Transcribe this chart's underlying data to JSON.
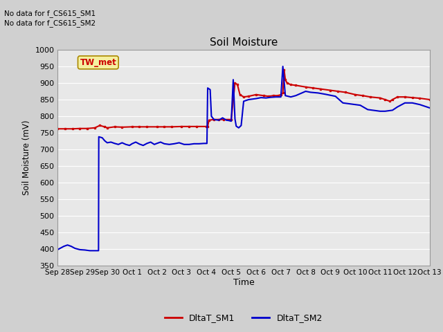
{
  "title": "Soil Moisture",
  "ylabel": "Soil Moisture (mV)",
  "xlabel": "Time",
  "ylim": [
    350,
    1000
  ],
  "yticks": [
    350,
    400,
    450,
    500,
    550,
    600,
    650,
    700,
    750,
    800,
    850,
    900,
    950,
    1000
  ],
  "annotation_text1": "No data for f_CS615_SM1",
  "annotation_text2": "No data for f_CS615_SM2",
  "box_label": "TW_met",
  "legend_sm1": "DltaT_SM1",
  "legend_sm2": "DltaT_SM2",
  "color_sm1": "#cc0000",
  "color_sm2": "#0000cc",
  "x_tick_labels": [
    "Sep 28",
    "Sep 29",
    "Sep 30",
    "Oct 1",
    "Oct 2",
    "Oct 3",
    "Oct 4",
    "Oct 5",
    "Oct 6",
    "Oct 7",
    "Oct 8",
    "Oct 9",
    "Oct 10",
    "Oct 11",
    "Oct 12",
    "Oct 13"
  ],
  "sm1_data": [
    [
      0.0,
      762
    ],
    [
      0.3,
      762
    ],
    [
      0.6,
      762
    ],
    [
      0.9,
      763
    ],
    [
      1.2,
      763
    ],
    [
      1.5,
      765
    ],
    [
      1.7,
      772
    ],
    [
      1.9,
      768
    ],
    [
      2.0,
      765
    ],
    [
      2.3,
      768
    ],
    [
      2.6,
      767
    ],
    [
      3.0,
      768
    ],
    [
      3.3,
      768
    ],
    [
      3.6,
      768
    ],
    [
      4.0,
      768
    ],
    [
      4.3,
      768
    ],
    [
      4.6,
      768
    ],
    [
      5.0,
      769
    ],
    [
      5.3,
      769
    ],
    [
      5.6,
      769
    ],
    [
      6.0,
      769
    ],
    [
      6.05,
      769
    ],
    [
      6.1,
      788
    ],
    [
      6.3,
      790
    ],
    [
      6.5,
      790
    ],
    [
      6.7,
      790
    ],
    [
      7.0,
      790
    ],
    [
      7.15,
      900
    ],
    [
      7.25,
      895
    ],
    [
      7.35,
      865
    ],
    [
      7.5,
      858
    ],
    [
      7.7,
      860
    ],
    [
      8.0,
      865
    ],
    [
      8.3,
      862
    ],
    [
      8.5,
      860
    ],
    [
      8.7,
      862
    ],
    [
      8.9,
      862
    ],
    [
      9.0,
      865
    ],
    [
      9.08,
      870
    ],
    [
      9.13,
      940
    ],
    [
      9.18,
      910
    ],
    [
      9.25,
      900
    ],
    [
      9.4,
      895
    ],
    [
      9.6,
      893
    ],
    [
      10.0,
      888
    ],
    [
      10.3,
      885
    ],
    [
      10.6,
      882
    ],
    [
      11.0,
      878
    ],
    [
      11.3,
      875
    ],
    [
      11.6,
      872
    ],
    [
      12.0,
      865
    ],
    [
      12.3,
      862
    ],
    [
      12.6,
      858
    ],
    [
      13.0,
      855
    ],
    [
      13.2,
      850
    ],
    [
      13.4,
      845
    ],
    [
      13.5,
      850
    ],
    [
      13.7,
      858
    ],
    [
      14.0,
      858
    ],
    [
      14.3,
      856
    ],
    [
      14.6,
      854
    ],
    [
      15.0,
      850
    ]
  ],
  "sm2_data": [
    [
      0.0,
      398
    ],
    [
      0.25,
      408
    ],
    [
      0.4,
      412
    ],
    [
      0.55,
      408
    ],
    [
      0.7,
      402
    ],
    [
      0.9,
      398
    ],
    [
      1.1,
      397
    ],
    [
      1.3,
      395
    ],
    [
      1.5,
      395
    ],
    [
      1.65,
      395
    ],
    [
      1.66,
      738
    ],
    [
      1.8,
      735
    ],
    [
      1.9,
      726
    ],
    [
      2.0,
      720
    ],
    [
      2.15,
      722
    ],
    [
      2.3,
      718
    ],
    [
      2.45,
      715
    ],
    [
      2.6,
      720
    ],
    [
      2.75,
      715
    ],
    [
      2.9,
      712
    ],
    [
      3.0,
      717
    ],
    [
      3.15,
      722
    ],
    [
      3.3,
      716
    ],
    [
      3.45,
      712
    ],
    [
      3.6,
      718
    ],
    [
      3.75,
      722
    ],
    [
      3.9,
      715
    ],
    [
      4.0,
      718
    ],
    [
      4.15,
      722
    ],
    [
      4.3,
      717
    ],
    [
      4.5,
      715
    ],
    [
      4.7,
      717
    ],
    [
      4.9,
      720
    ],
    [
      5.1,
      715
    ],
    [
      5.3,
      715
    ],
    [
      5.5,
      717
    ],
    [
      5.7,
      717
    ],
    [
      5.9,
      718
    ],
    [
      6.0,
      718
    ],
    [
      6.02,
      718
    ],
    [
      6.05,
      885
    ],
    [
      6.15,
      880
    ],
    [
      6.2,
      800
    ],
    [
      6.3,
      790
    ],
    [
      6.5,
      788
    ],
    [
      6.65,
      795
    ],
    [
      6.8,
      788
    ],
    [
      6.9,
      787
    ],
    [
      7.0,
      785
    ],
    [
      7.08,
      910
    ],
    [
      7.15,
      792
    ],
    [
      7.2,
      770
    ],
    [
      7.3,
      765
    ],
    [
      7.4,
      772
    ],
    [
      7.5,
      845
    ],
    [
      7.7,
      850
    ],
    [
      8.0,
      853
    ],
    [
      8.2,
      856
    ],
    [
      8.4,
      855
    ],
    [
      8.6,
      857
    ],
    [
      8.8,
      858
    ],
    [
      9.0,
      858
    ],
    [
      9.08,
      950
    ],
    [
      9.18,
      862
    ],
    [
      9.4,
      858
    ],
    [
      9.6,
      862
    ],
    [
      10.0,
      875
    ],
    [
      10.2,
      872
    ],
    [
      10.5,
      870
    ],
    [
      10.8,
      866
    ],
    [
      11.0,
      863
    ],
    [
      11.2,
      860
    ],
    [
      11.5,
      840
    ],
    [
      11.8,
      837
    ],
    [
      12.0,
      835
    ],
    [
      12.2,
      833
    ],
    [
      12.5,
      820
    ],
    [
      12.7,
      818
    ],
    [
      13.0,
      815
    ],
    [
      13.2,
      815
    ],
    [
      13.5,
      818
    ],
    [
      13.7,
      828
    ],
    [
      14.0,
      840
    ],
    [
      14.3,
      840
    ],
    [
      14.6,
      835
    ],
    [
      15.0,
      825
    ]
  ]
}
